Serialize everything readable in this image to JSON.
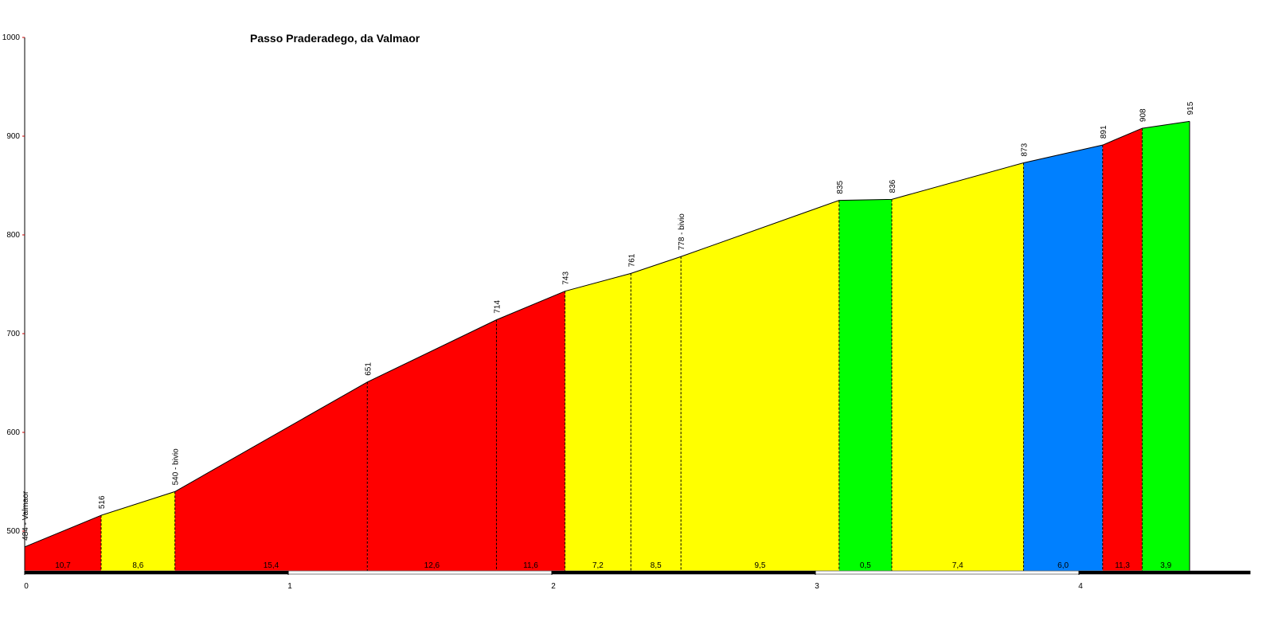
{
  "chart_data": {
    "type": "profile",
    "title": "Passo Praderadego, da Valmaor",
    "x": [
      0,
      0.29,
      0.57,
      1.3,
      1.79,
      2.05,
      2.3,
      2.49,
      3.09,
      3.29,
      3.79,
      4.09,
      4.24,
      4.42
    ],
    "values": [
      484,
      516,
      540,
      651,
      714,
      743,
      761,
      778,
      835,
      836,
      873,
      891,
      908,
      915
    ],
    "value_labels": [
      "484 - Valmaor",
      "516",
      "540 - bivio",
      "651",
      "714",
      "743",
      "761",
      "778 - bivio",
      "835",
      "836",
      "873",
      "891",
      "908",
      "915"
    ],
    "segment_grades": [
      "10,7",
      "8,6",
      "15,4",
      "12,6",
      "11,6",
      "7,2",
      "8,5",
      "9,5",
      "0,5",
      "7,4",
      "6,0",
      "11,3",
      "3,9"
    ],
    "segment_colors": [
      "#ff0000",
      "#ffff00",
      "#ff0000",
      "#ff0000",
      "#ff0000",
      "#ffff00",
      "#ffff00",
      "#ffff00",
      "#00ff00",
      "#ffff00",
      "#0080ff",
      "#ff0000",
      "#00ff00"
    ],
    "xlim": [
      0,
      4.65
    ],
    "xticks": [
      0,
      1,
      2,
      3,
      4
    ],
    "ylim": [
      460,
      1000
    ],
    "yticks": [
      500,
      600,
      700,
      800,
      900,
      1000
    ]
  }
}
